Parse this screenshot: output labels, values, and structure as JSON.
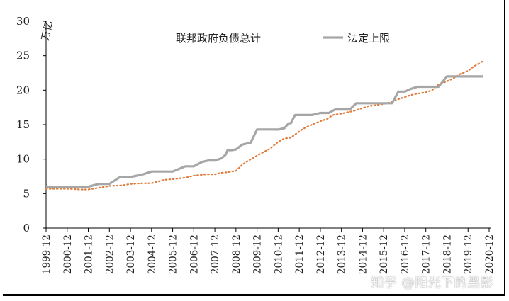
{
  "chart_data": {
    "type": "line",
    "ylabel": "万亿",
    "ylim": [
      0,
      30
    ],
    "yticks": [
      0,
      5,
      10,
      15,
      20,
      25,
      30
    ],
    "grid": false,
    "legend_position": "top",
    "x_tick_labels": [
      "1999-12",
      "2000-12",
      "2001-12",
      "2002-12",
      "2003-12",
      "2004-12",
      "2005-12",
      "2006-12",
      "2007-12",
      "2008-12",
      "2009-12",
      "2010-12",
      "2011-12",
      "2012-12",
      "2013-12",
      "2014-12",
      "2015-12",
      "2016-12",
      "2017-12",
      "2018-12",
      "2019-12",
      "2020-12"
    ],
    "series": [
      {
        "name": "联邦政府负债总计",
        "style": "dotted",
        "color": "#e07b39",
        "x": [
          1999.9,
          2000.5,
          2001.0,
          2001.5,
          2001.9,
          2002.5,
          2002.9,
          2003.5,
          2003.9,
          2004.5,
          2004.9,
          2005.5,
          2005.9,
          2006.5,
          2006.9,
          2007.5,
          2007.9,
          2008.2,
          2008.5,
          2008.9,
          2009.2,
          2009.5,
          2009.9,
          2010.2,
          2010.5,
          2010.9,
          2011.2,
          2011.5,
          2011.9,
          2012.2,
          2012.5,
          2012.9,
          2013.2,
          2013.5,
          2013.9,
          2014.2,
          2014.5,
          2014.9,
          2015.2,
          2015.5,
          2015.9,
          2016.2,
          2016.5,
          2016.9,
          2017.2,
          2017.5,
          2017.9,
          2018.2,
          2018.5,
          2018.9,
          2019.2,
          2019.5,
          2019.9,
          2020.2,
          2020.6
        ],
        "values": [
          5.7,
          5.7,
          5.7,
          5.6,
          5.6,
          5.9,
          6.1,
          6.2,
          6.4,
          6.5,
          6.5,
          7.0,
          7.1,
          7.3,
          7.6,
          7.8,
          7.8,
          8.0,
          8.1,
          8.3,
          9.2,
          9.8,
          10.5,
          11.0,
          11.5,
          12.5,
          13.0,
          13.1,
          14.0,
          14.6,
          15.0,
          15.5,
          15.8,
          16.4,
          16.6,
          16.8,
          17.0,
          17.4,
          17.7,
          17.8,
          18.0,
          18.2,
          18.6,
          19.0,
          19.3,
          19.5,
          19.7,
          20.0,
          20.8,
          21.3,
          21.7,
          22.3,
          22.8,
          23.5,
          24.2
        ]
      },
      {
        "name": "法定上限",
        "style": "solid",
        "color": "#a6a6a6",
        "x": [
          1999.9,
          2001.9,
          2002.4,
          2002.9,
          2003.4,
          2003.9,
          2004.5,
          2004.9,
          2005.5,
          2005.9,
          2006.5,
          2006.9,
          2007.3,
          2007.6,
          2007.9,
          2008.2,
          2008.4,
          2008.5,
          2008.7,
          2008.9,
          2009.2,
          2009.6,
          2009.9,
          2010.2,
          2010.5,
          2010.9,
          2011.2,
          2011.4,
          2011.5,
          2011.7,
          2011.9,
          2012.5,
          2012.9,
          2013.3,
          2013.6,
          2013.9,
          2014.3,
          2014.6,
          2014.9,
          2015.3,
          2015.6,
          2015.9,
          2016.3,
          2016.6,
          2016.9,
          2017.2,
          2017.5,
          2017.9,
          2018.5,
          2018.9,
          2019.2,
          2019.6,
          2019.9,
          2020.6
        ],
        "values": [
          6.0,
          6.0,
          6.4,
          6.4,
          7.4,
          7.4,
          7.8,
          8.2,
          8.2,
          8.2,
          8.96,
          8.96,
          9.6,
          9.8,
          9.8,
          10.1,
          10.6,
          11.3,
          11.3,
          11.4,
          12.1,
          12.4,
          14.3,
          14.3,
          14.3,
          14.29,
          14.5,
          15.2,
          15.2,
          16.4,
          16.4,
          16.4,
          16.7,
          16.7,
          17.2,
          17.2,
          17.2,
          18.1,
          18.1,
          18.1,
          18.1,
          18.1,
          18.1,
          19.8,
          19.8,
          20.2,
          20.5,
          20.5,
          20.5,
          22.0,
          22.0,
          22.0,
          22.0,
          22.0
        ]
      }
    ]
  },
  "watermark": "知乎 @阳光下的黑影"
}
